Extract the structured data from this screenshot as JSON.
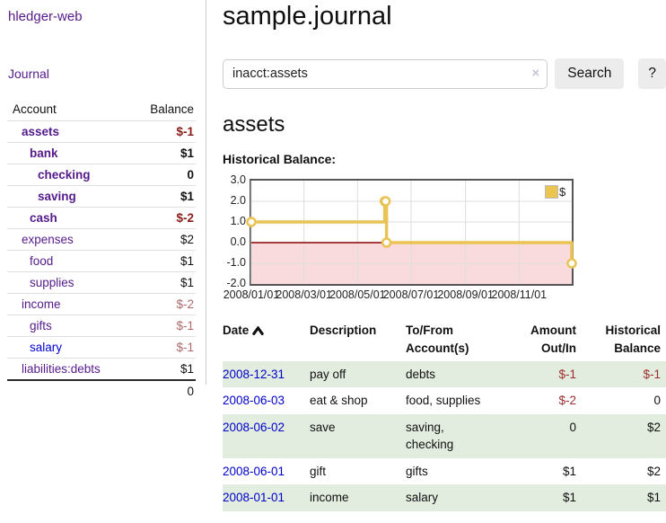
{
  "app": {
    "title": "hledger-web"
  },
  "sidebar": {
    "journal_link": "Journal",
    "accounts_header": {
      "account": "Account",
      "balance": "Balance"
    },
    "accounts": [
      {
        "name": "assets",
        "indent": 0,
        "balance": "$-1",
        "in_filter": true,
        "visited": true
      },
      {
        "name": "bank",
        "indent": 1,
        "balance": "$1",
        "in_filter": true,
        "visited": true
      },
      {
        "name": "checking",
        "indent": 2,
        "balance": "0",
        "in_filter": true,
        "visited": true
      },
      {
        "name": "saving",
        "indent": 2,
        "balance": "$1",
        "in_filter": true,
        "visited": true
      },
      {
        "name": "cash",
        "indent": 1,
        "balance": "$-2",
        "in_filter": true,
        "visited": true
      },
      {
        "name": "expenses",
        "indent": 0,
        "balance": "$2",
        "in_filter": false,
        "visited": true
      },
      {
        "name": "food",
        "indent": 1,
        "balance": "$1",
        "in_filter": false,
        "visited": true
      },
      {
        "name": "supplies",
        "indent": 1,
        "balance": "$1",
        "in_filter": false,
        "visited": true
      },
      {
        "name": "income",
        "indent": 0,
        "balance": "$-2",
        "in_filter": false,
        "visited": true
      },
      {
        "name": "gifts",
        "indent": 1,
        "balance": "$-1",
        "in_filter": false,
        "visited": true
      },
      {
        "name": "salary",
        "indent": 1,
        "balance": "$-1",
        "in_filter": false,
        "visited": false
      },
      {
        "name": "liabilities:debts",
        "indent": 0,
        "balance": "$1",
        "in_filter": false,
        "visited": true
      }
    ],
    "total": "0"
  },
  "header": {
    "title": "sample.journal"
  },
  "search": {
    "value": "inacct:assets",
    "clear_icon": "×",
    "button_label": "Search",
    "help_label": "?"
  },
  "account_page": {
    "heading": "assets",
    "chart_label": "Historical Balance:"
  },
  "chart_data": {
    "type": "line",
    "title": "Historical Balance",
    "step": true,
    "series": [
      {
        "name": "$",
        "color": "#e9c356",
        "points": [
          [
            "2008-01-01",
            1
          ],
          [
            "2008-06-01",
            2
          ],
          [
            "2008-06-02",
            2
          ],
          [
            "2008-06-03",
            0
          ],
          [
            "2008-12-31",
            -1
          ]
        ]
      }
    ],
    "x_range": [
      "2008-01-01",
      "2008-12-31"
    ],
    "ylim": [
      -2,
      3
    ],
    "y_ticks": [
      "3.0",
      "2.0",
      "1.0",
      "0.0",
      "-1.0",
      "-2.0"
    ],
    "x_tick_labels": [
      "2008/01/01",
      "2008/03/01",
      "2008/05/01",
      "2008/07/01",
      "2008/09/01",
      "2008/11/01"
    ],
    "grid": true,
    "negative_region_fill": "#fadbdd",
    "zero_line_color": "#8b0000",
    "legend": {
      "label": "$",
      "position": "top-right"
    }
  },
  "register": {
    "columns": [
      "Date",
      "Description",
      "To/From Account(s)",
      "Amount Out/In",
      "Historical Balance"
    ],
    "rows": [
      {
        "date": "2008-12-31",
        "description": "pay off",
        "accounts": "debts",
        "amount": "$-1",
        "balance": "$-1"
      },
      {
        "date": "2008-06-03",
        "description": "eat & shop",
        "accounts": "food, supplies",
        "amount": "$-2",
        "balance": "0"
      },
      {
        "date": "2008-06-02",
        "description": "save",
        "accounts": "saving, checking",
        "amount": "0",
        "balance": "$2"
      },
      {
        "date": "2008-06-01",
        "description": "gift",
        "accounts": "gifts",
        "amount": "$1",
        "balance": "$2"
      },
      {
        "date": "2008-01-01",
        "description": "income",
        "accounts": "salary",
        "amount": "$1",
        "balance": "$1"
      }
    ]
  }
}
